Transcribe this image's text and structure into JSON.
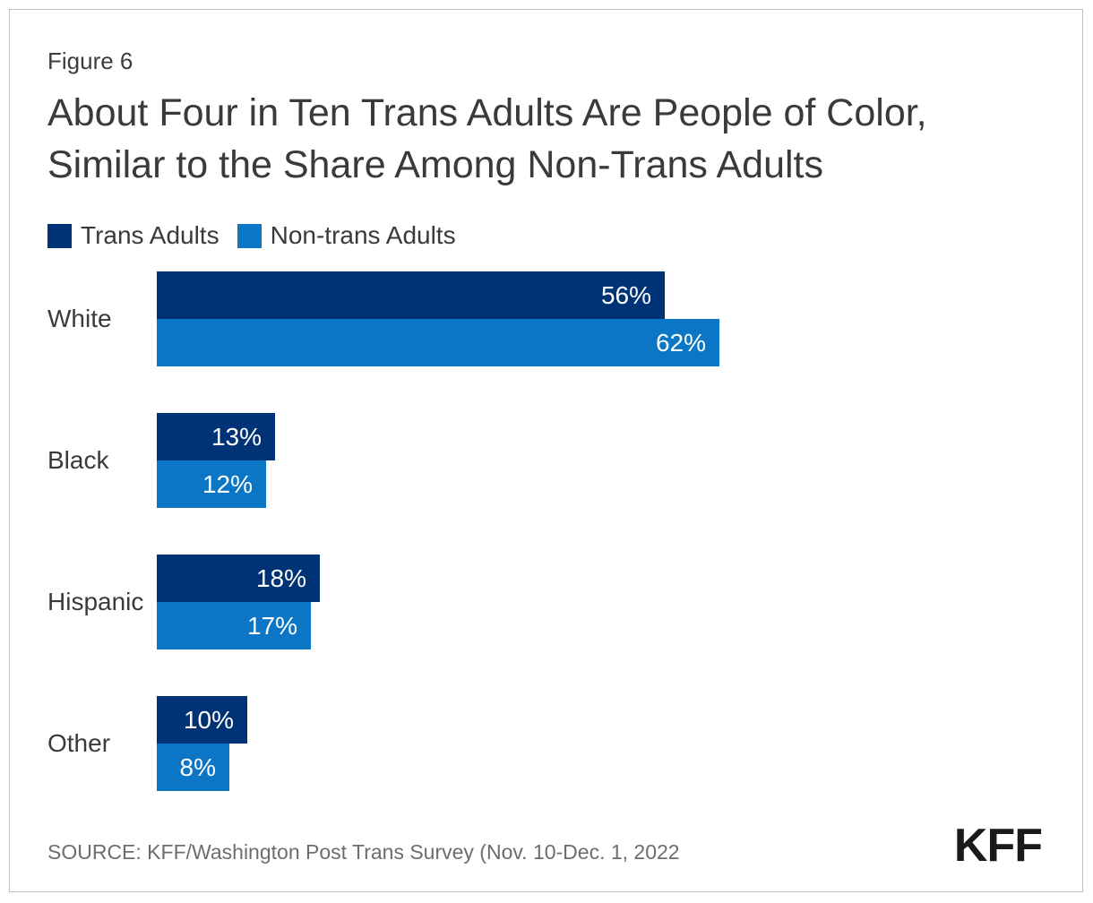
{
  "figure_label": "Figure 6",
  "title_lines": [
    "About Four in Ten Trans Adults Are People of Color,",
    "Similar to the Share Among Non-Trans Adults"
  ],
  "legend": {
    "items": [
      {
        "label": "Trans Adults",
        "color": "#003375"
      },
      {
        "label": "Non-trans Adults",
        "color": "#0b76c6"
      }
    ]
  },
  "chart_data": {
    "type": "bar",
    "orientation": "horizontal",
    "title": "About Four in Ten Trans Adults Are People of Color, Similar to the Share Among Non-Trans Adults",
    "categories": [
      "White",
      "Black",
      "Hispanic",
      "Other"
    ],
    "series": [
      {
        "name": "Trans Adults",
        "color": "#003375",
        "values": [
          56,
          13,
          18,
          10
        ]
      },
      {
        "name": "Non-trans Adults",
        "color": "#0b76c6",
        "values": [
          62,
          12,
          17,
          8
        ]
      }
    ],
    "value_suffix": "%",
    "xlim": [
      0,
      100
    ],
    "grid": false,
    "axis_ticks": "none",
    "legend_position": "top-left",
    "value_labels": "inside-end-white"
  },
  "source": "SOURCE: KFF/Washington Post Trans Survey (Nov. 10-Dec. 1, 2022",
  "logo_text": "KFF",
  "colors": {
    "trans_adults_bar": "#003375",
    "non_trans_adults_bar": "#0b76c6",
    "title_text": "#3a3a3a",
    "source_text": "#6d6d6d",
    "frame_border": "#c2c2c2",
    "value_label_text": "#ffffff"
  }
}
